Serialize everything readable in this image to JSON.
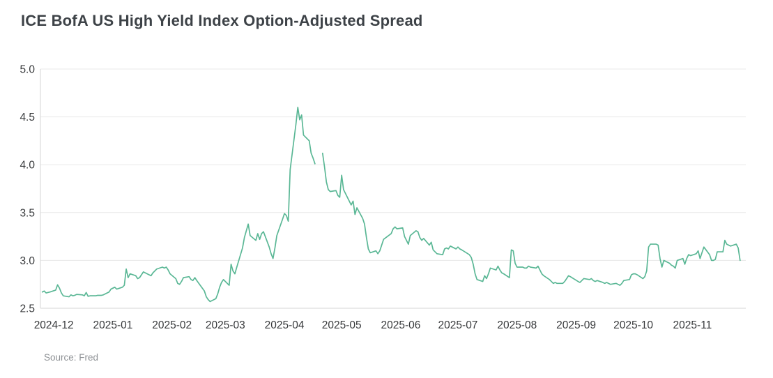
{
  "title": "ICE BofA US High Yield Index Option-Adjusted Spread",
  "source": {
    "text": "Source: Fred"
  },
  "colors": {
    "line": "#5ab795",
    "grid": "#e8e8e8",
    "axis": "#d5d5d5",
    "tick_text": "#37393b",
    "title_text": "#3d4247",
    "source_text": "#8e9195",
    "background": "#ffffff"
  },
  "chart_data": {
    "type": "line",
    "title": "ICE BofA US High Yield Index Option-Adjusted Spread",
    "xlabel": "",
    "ylabel": "",
    "grid": "horizontal",
    "legend": "none",
    "ylim": [
      2.5,
      5.0
    ],
    "yticks": [
      2.5,
      3.0,
      3.5,
      4.0,
      4.5,
      5.0
    ],
    "ytick_labels": [
      "2.5",
      "3.0",
      "3.5",
      "4.0",
      "4.5",
      "5.0"
    ],
    "x_range": [
      "2024-11-24",
      "2025-11-29"
    ],
    "xticks": [
      {
        "date": "2024-12-01",
        "label": "2024-12"
      },
      {
        "date": "2025-01-01",
        "label": "2025-01"
      },
      {
        "date": "2025-02-01",
        "label": "2025-02"
      },
      {
        "date": "2025-03-01",
        "label": "2025-03"
      },
      {
        "date": "2025-04-01",
        "label": "2025-04"
      },
      {
        "date": "2025-05-01",
        "label": "2025-05"
      },
      {
        "date": "2025-06-01",
        "label": "2025-06"
      },
      {
        "date": "2025-07-01",
        "label": "2025-07"
      },
      {
        "date": "2025-08-01",
        "label": "2025-08"
      },
      {
        "date": "2025-09-01",
        "label": "2025-09"
      },
      {
        "date": "2025-10-01",
        "label": "2025-10"
      },
      {
        "date": "2025-11-01",
        "label": "2025-11"
      }
    ],
    "points": [
      [
        "2024-11-25",
        2.67
      ],
      [
        "2024-11-26",
        2.68
      ],
      [
        "2024-11-27",
        2.66
      ],
      [
        "2024-11-29",
        2.67
      ],
      [
        "2024-12-02",
        2.69
      ],
      [
        "2024-12-03",
        2.745
      ],
      [
        "2024-12-04",
        2.71
      ],
      [
        "2024-12-05",
        2.66
      ],
      [
        "2024-12-06",
        2.63
      ],
      [
        "2024-12-09",
        2.62
      ],
      [
        "2024-12-10",
        2.64
      ],
      [
        "2024-12-11",
        2.63
      ],
      [
        "2024-12-12",
        2.635
      ],
      [
        "2024-12-13",
        2.645
      ],
      [
        "2024-12-16",
        2.64
      ],
      [
        "2024-12-17",
        2.63
      ],
      [
        "2024-12-18",
        2.665
      ],
      [
        "2024-12-19",
        2.625
      ],
      [
        "2024-12-20",
        2.63
      ],
      [
        "2024-12-23",
        2.63
      ],
      [
        "2024-12-24",
        2.635
      ],
      [
        "2024-12-26",
        2.635
      ],
      [
        "2024-12-27",
        2.64
      ],
      [
        "2024-12-30",
        2.67
      ],
      [
        "2024-12-31",
        2.7
      ],
      [
        "2025-01-02",
        2.72
      ],
      [
        "2025-01-03",
        2.7
      ],
      [
        "2025-01-06",
        2.72
      ],
      [
        "2025-01-07",
        2.74
      ],
      [
        "2025-01-08",
        2.91
      ],
      [
        "2025-01-09",
        2.82
      ],
      [
        "2025-01-10",
        2.86
      ],
      [
        "2025-01-13",
        2.84
      ],
      [
        "2025-01-14",
        2.81
      ],
      [
        "2025-01-15",
        2.82
      ],
      [
        "2025-01-16",
        2.85
      ],
      [
        "2025-01-17",
        2.88
      ],
      [
        "2025-01-21",
        2.84
      ],
      [
        "2025-01-22",
        2.87
      ],
      [
        "2025-01-23",
        2.89
      ],
      [
        "2025-01-24",
        2.91
      ],
      [
        "2025-01-27",
        2.93
      ],
      [
        "2025-01-28",
        2.92
      ],
      [
        "2025-01-29",
        2.93
      ],
      [
        "2025-01-30",
        2.9
      ],
      [
        "2025-01-31",
        2.86
      ],
      [
        "2025-02-03",
        2.81
      ],
      [
        "2025-02-04",
        2.76
      ],
      [
        "2025-02-05",
        2.75
      ],
      [
        "2025-02-06",
        2.78
      ],
      [
        "2025-02-07",
        2.82
      ],
      [
        "2025-02-10",
        2.83
      ],
      [
        "2025-02-11",
        2.8
      ],
      [
        "2025-02-12",
        2.79
      ],
      [
        "2025-02-13",
        2.82
      ],
      [
        "2025-02-14",
        2.79
      ],
      [
        "2025-02-18",
        2.68
      ],
      [
        "2025-02-19",
        2.62
      ],
      [
        "2025-02-20",
        2.59
      ],
      [
        "2025-02-21",
        2.57
      ],
      [
        "2025-02-24",
        2.6
      ],
      [
        "2025-02-25",
        2.65
      ],
      [
        "2025-02-26",
        2.72
      ],
      [
        "2025-02-27",
        2.77
      ],
      [
        "2025-02-28",
        2.8
      ],
      [
        "2025-03-03",
        2.74
      ],
      [
        "2025-03-04",
        2.96
      ],
      [
        "2025-03-05",
        2.89
      ],
      [
        "2025-03-06",
        2.86
      ],
      [
        "2025-03-07",
        2.93
      ],
      [
        "2025-03-10",
        3.13
      ],
      [
        "2025-03-11",
        3.24
      ],
      [
        "2025-03-12",
        3.31
      ],
      [
        "2025-03-13",
        3.38
      ],
      [
        "2025-03-14",
        3.26
      ],
      [
        "2025-03-17",
        3.21
      ],
      [
        "2025-03-18",
        3.28
      ],
      [
        "2025-03-19",
        3.22
      ],
      [
        "2025-03-20",
        3.28
      ],
      [
        "2025-03-21",
        3.3
      ],
      [
        "2025-03-24",
        3.14
      ],
      [
        "2025-03-25",
        3.07
      ],
      [
        "2025-03-26",
        3.02
      ],
      [
        "2025-03-27",
        3.13
      ],
      [
        "2025-03-28",
        3.26
      ],
      [
        "2025-03-31",
        3.43
      ],
      [
        "2025-04-01",
        3.49
      ],
      [
        "2025-04-02",
        3.47
      ],
      [
        "2025-04-03",
        3.41
      ],
      [
        "2025-04-04",
        3.95
      ],
      [
        "2025-04-07",
        4.42
      ],
      [
        "2025-04-08",
        4.6
      ],
      [
        "2025-04-09",
        4.47
      ],
      [
        "2025-04-10",
        4.52
      ],
      [
        "2025-04-11",
        4.31
      ],
      [
        "2025-04-14",
        4.25
      ],
      [
        "2025-04-15",
        4.12
      ],
      [
        "2025-04-16",
        4.07
      ],
      [
        "2025-04-17",
        4.01
      ],
      [
        "2025-04-18",
        null
      ],
      [
        "2025-04-21",
        4.12
      ],
      [
        "2025-04-22",
        3.98
      ],
      [
        "2025-04-23",
        3.82
      ],
      [
        "2025-04-24",
        3.74
      ],
      [
        "2025-04-25",
        3.72
      ],
      [
        "2025-04-28",
        3.73
      ],
      [
        "2025-04-29",
        3.68
      ],
      [
        "2025-04-30",
        3.66
      ],
      [
        "2025-05-01",
        3.89
      ],
      [
        "2025-05-02",
        3.74
      ],
      [
        "2025-05-05",
        3.62
      ],
      [
        "2025-05-06",
        3.58
      ],
      [
        "2025-05-07",
        3.62
      ],
      [
        "2025-05-08",
        3.48
      ],
      [
        "2025-05-09",
        3.55
      ],
      [
        "2025-05-12",
        3.44
      ],
      [
        "2025-05-13",
        3.38
      ],
      [
        "2025-05-14",
        3.24
      ],
      [
        "2025-05-15",
        3.12
      ],
      [
        "2025-05-16",
        3.08
      ],
      [
        "2025-05-19",
        3.1
      ],
      [
        "2025-05-20",
        3.07
      ],
      [
        "2025-05-21",
        3.1
      ],
      [
        "2025-05-22",
        3.16
      ],
      [
        "2025-05-23",
        3.22
      ],
      [
        "2025-05-27",
        3.28
      ],
      [
        "2025-05-28",
        3.33
      ],
      [
        "2025-05-29",
        3.35
      ],
      [
        "2025-05-30",
        3.33
      ],
      [
        "2025-06-02",
        3.34
      ],
      [
        "2025-06-03",
        3.25
      ],
      [
        "2025-06-04",
        3.21
      ],
      [
        "2025-06-05",
        3.17
      ],
      [
        "2025-06-06",
        3.26
      ],
      [
        "2025-06-09",
        3.31
      ],
      [
        "2025-06-10",
        3.3
      ],
      [
        "2025-06-11",
        3.24
      ],
      [
        "2025-06-12",
        3.21
      ],
      [
        "2025-06-13",
        3.23
      ],
      [
        "2025-06-16",
        3.16
      ],
      [
        "2025-06-17",
        3.19
      ],
      [
        "2025-06-18",
        3.11
      ],
      [
        "2025-06-20",
        3.07
      ],
      [
        "2025-06-23",
        3.06
      ],
      [
        "2025-06-24",
        3.12
      ],
      [
        "2025-06-25",
        3.13
      ],
      [
        "2025-06-26",
        3.12
      ],
      [
        "2025-06-27",
        3.15
      ],
      [
        "2025-06-30",
        3.12
      ],
      [
        "2025-07-01",
        3.14
      ],
      [
        "2025-07-02",
        3.12
      ],
      [
        "2025-07-03",
        3.11
      ],
      [
        "2025-07-07",
        3.06
      ],
      [
        "2025-07-08",
        3.03
      ],
      [
        "2025-07-09",
        2.96
      ],
      [
        "2025-07-10",
        2.86
      ],
      [
        "2025-07-11",
        2.8
      ],
      [
        "2025-07-14",
        2.78
      ],
      [
        "2025-07-15",
        2.84
      ],
      [
        "2025-07-16",
        2.81
      ],
      [
        "2025-07-17",
        2.86
      ],
      [
        "2025-07-18",
        2.92
      ],
      [
        "2025-07-21",
        2.9
      ],
      [
        "2025-07-22",
        2.94
      ],
      [
        "2025-07-23",
        2.9
      ],
      [
        "2025-07-24",
        2.87
      ],
      [
        "2025-07-25",
        2.86
      ],
      [
        "2025-07-28",
        2.82
      ],
      [
        "2025-07-29",
        3.11
      ],
      [
        "2025-07-30",
        3.1
      ],
      [
        "2025-07-31",
        2.97
      ],
      [
        "2025-08-01",
        2.93
      ],
      [
        "2025-08-04",
        2.93
      ],
      [
        "2025-08-05",
        2.92
      ],
      [
        "2025-08-06",
        2.92
      ],
      [
        "2025-08-07",
        2.94
      ],
      [
        "2025-08-08",
        2.93
      ],
      [
        "2025-08-11",
        2.92
      ],
      [
        "2025-08-12",
        2.94
      ],
      [
        "2025-08-13",
        2.9
      ],
      [
        "2025-08-14",
        2.86
      ],
      [
        "2025-08-15",
        2.84
      ],
      [
        "2025-08-18",
        2.8
      ],
      [
        "2025-08-19",
        2.78
      ],
      [
        "2025-08-20",
        2.76
      ],
      [
        "2025-08-21",
        2.77
      ],
      [
        "2025-08-22",
        2.76
      ],
      [
        "2025-08-25",
        2.76
      ],
      [
        "2025-08-26",
        2.78
      ],
      [
        "2025-08-27",
        2.81
      ],
      [
        "2025-08-28",
        2.84
      ],
      [
        "2025-08-29",
        2.83
      ],
      [
        "2025-09-02",
        2.78
      ],
      [
        "2025-09-03",
        2.77
      ],
      [
        "2025-09-04",
        2.79
      ],
      [
        "2025-09-05",
        2.81
      ],
      [
        "2025-09-08",
        2.8
      ],
      [
        "2025-09-09",
        2.81
      ],
      [
        "2025-09-10",
        2.79
      ],
      [
        "2025-09-11",
        2.78
      ],
      [
        "2025-09-12",
        2.79
      ],
      [
        "2025-09-15",
        2.77
      ],
      [
        "2025-09-16",
        2.76
      ],
      [
        "2025-09-17",
        2.77
      ],
      [
        "2025-09-18",
        2.76
      ],
      [
        "2025-09-19",
        2.75
      ],
      [
        "2025-09-22",
        2.76
      ],
      [
        "2025-09-23",
        2.75
      ],
      [
        "2025-09-24",
        2.74
      ],
      [
        "2025-09-25",
        2.76
      ],
      [
        "2025-09-26",
        2.79
      ],
      [
        "2025-09-29",
        2.8
      ],
      [
        "2025-09-30",
        2.85
      ],
      [
        "2025-10-01",
        2.86
      ],
      [
        "2025-10-02",
        2.86
      ],
      [
        "2025-10-03",
        2.85
      ],
      [
        "2025-10-06",
        2.81
      ],
      [
        "2025-10-07",
        2.83
      ],
      [
        "2025-10-08",
        2.89
      ],
      [
        "2025-10-09",
        3.14
      ],
      [
        "2025-10-10",
        3.17
      ],
      [
        "2025-10-13",
        3.17
      ],
      [
        "2025-10-14",
        3.16
      ],
      [
        "2025-10-15",
        3.02
      ],
      [
        "2025-10-16",
        2.93
      ],
      [
        "2025-10-17",
        3.0
      ],
      [
        "2025-10-20",
        2.97
      ],
      [
        "2025-10-21",
        2.95
      ],
      [
        "2025-10-22",
        2.94
      ],
      [
        "2025-10-23",
        2.92
      ],
      [
        "2025-10-24",
        3.0
      ],
      [
        "2025-10-27",
        3.02
      ],
      [
        "2025-10-28",
        2.96
      ],
      [
        "2025-10-29",
        3.02
      ],
      [
        "2025-10-30",
        3.06
      ],
      [
        "2025-10-31",
        3.05
      ],
      [
        "2025-11-03",
        3.07
      ],
      [
        "2025-11-04",
        3.1
      ],
      [
        "2025-11-05",
        3.02
      ],
      [
        "2025-11-06",
        3.08
      ],
      [
        "2025-11-07",
        3.14
      ],
      [
        "2025-11-10",
        3.06
      ],
      [
        "2025-11-11",
        3.0
      ],
      [
        "2025-11-12",
        3.0
      ],
      [
        "2025-11-13",
        3.01
      ],
      [
        "2025-11-14",
        3.09
      ],
      [
        "2025-11-17",
        3.09
      ],
      [
        "2025-11-18",
        3.21
      ],
      [
        "2025-11-19",
        3.17
      ],
      [
        "2025-11-20",
        3.16
      ],
      [
        "2025-11-21",
        3.15
      ],
      [
        "2025-11-24",
        3.17
      ],
      [
        "2025-11-25",
        3.13
      ],
      [
        "2025-11-26",
        3.0
      ]
    ]
  }
}
